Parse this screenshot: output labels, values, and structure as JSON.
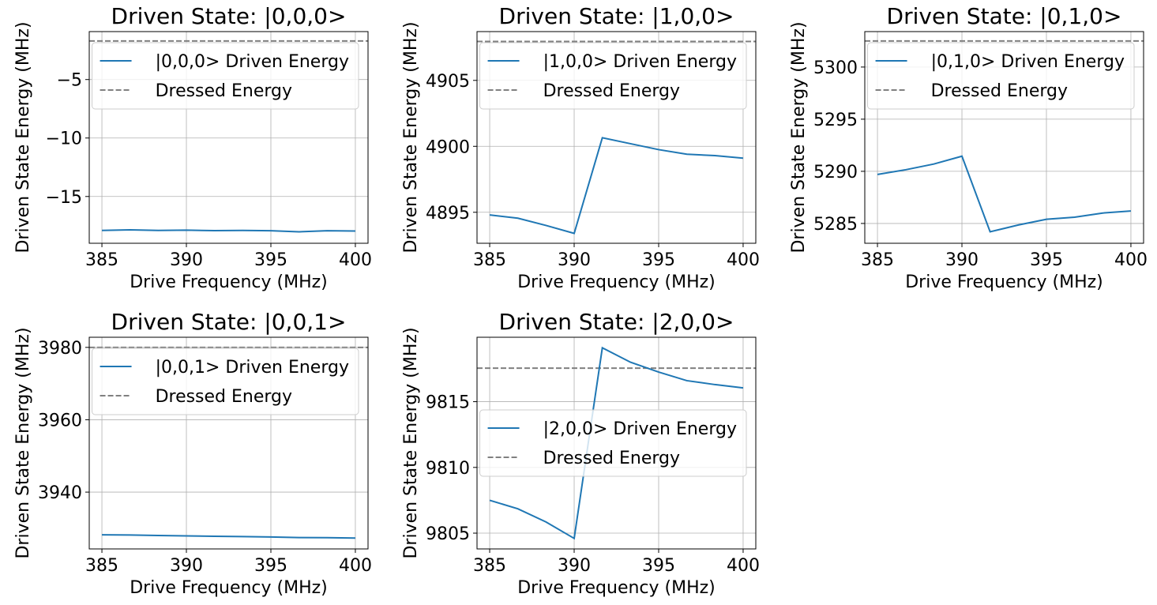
{
  "chart_data": [
    {
      "type": "line",
      "title": "Driven State: |0,0,0>",
      "xlabel": "Drive Frequency (MHz)",
      "ylabel": "Driven State Energy (MHz)",
      "x": [
        385,
        386.667,
        388.333,
        390,
        391.667,
        393.333,
        395,
        396.667,
        398.333,
        400
      ],
      "series": [
        {
          "name": "|0,0,0> Driven Energy",
          "color": "#1f77b4",
          "values": [
            -17.9,
            -17.85,
            -17.9,
            -17.88,
            -17.92,
            -17.9,
            -17.93,
            -18.02,
            -17.93,
            -17.95
          ]
        }
      ],
      "hlines": [
        {
          "name": "Dressed Energy",
          "color": "#808080",
          "value": -1.7
        }
      ],
      "xlim": [
        384.25,
        400.75
      ],
      "ylim": [
        -19,
        -0.9
      ],
      "xticks": [
        385,
        390,
        395,
        400
      ],
      "yticks": [
        {
          "value": -15,
          "label": "−15"
        },
        {
          "value": -10,
          "label": "−10"
        },
        {
          "value": -5,
          "label": "−5"
        }
      ],
      "grid": true,
      "legend": "upper right"
    },
    {
      "type": "line",
      "title": "Driven State: |1,0,0>",
      "xlabel": "Drive Frequency (MHz)",
      "ylabel": "Driven State Energy (MHz)",
      "x": [
        385,
        386.667,
        388.333,
        390,
        391.667,
        393.333,
        395,
        396.667,
        398.333,
        400
      ],
      "series": [
        {
          "name": "|1,0,0> Driven Energy",
          "color": "#1f77b4",
          "values": [
            4894.8,
            4894.55,
            4894.0,
            4893.4,
            4900.65,
            4900.2,
            4899.75,
            4899.4,
            4899.3,
            4899.1
          ]
        }
      ],
      "hlines": [
        {
          "name": "Dressed Energy",
          "color": "#808080",
          "value": 4907.95
        }
      ],
      "xlim": [
        384.25,
        400.75
      ],
      "ylim": [
        4892.65,
        4908.7
      ],
      "xticks": [
        385,
        390,
        395,
        400
      ],
      "yticks": [
        4895,
        4900,
        4905
      ],
      "grid": true,
      "legend": "upper right"
    },
    {
      "type": "line",
      "title": "Driven State: |0,1,0>",
      "xlabel": "Drive Frequency (MHz)",
      "ylabel": "Driven State Energy (MHz)",
      "x": [
        385,
        386.667,
        388.333,
        390,
        391.667,
        393.333,
        395,
        396.667,
        398.333,
        400
      ],
      "series": [
        {
          "name": "|0,1,0> Driven Energy",
          "color": "#1f77b4",
          "values": [
            5289.7,
            5290.15,
            5290.7,
            5291.45,
            5284.2,
            5284.85,
            5285.4,
            5285.6,
            5286.0,
            5286.2
          ]
        }
      ],
      "hlines": [
        {
          "name": "Dressed Energy",
          "color": "#808080",
          "value": 5302.5
        }
      ],
      "xlim": [
        384.25,
        400.75
      ],
      "ylim": [
        5283.1,
        5303.4
      ],
      "xticks": [
        385,
        390,
        395,
        400
      ],
      "yticks": [
        5285,
        5290,
        5295,
        5300
      ],
      "grid": true,
      "legend": "upper right"
    },
    {
      "type": "line",
      "title": "Driven State: |0,0,1>",
      "xlabel": "Drive Frequency (MHz)",
      "ylabel": "Driven State Energy (MHz)",
      "x": [
        385,
        386.667,
        388.333,
        390,
        391.667,
        393.333,
        395,
        396.667,
        398.333,
        400
      ],
      "series": [
        {
          "name": "|0,0,1> Driven Energy",
          "color": "#1f77b4",
          "values": [
            3928.2,
            3928.15,
            3928.0,
            3927.9,
            3927.8,
            3927.7,
            3927.6,
            3927.45,
            3927.4,
            3927.3
          ]
        }
      ],
      "hlines": [
        {
          "name": "Dressed Energy",
          "color": "#808080",
          "value": 3980.0
        }
      ],
      "xlim": [
        384.25,
        400.75
      ],
      "ylim": [
        3924.3,
        3982.8
      ],
      "xticks": [
        385,
        390,
        395,
        400
      ],
      "yticks": [
        3940,
        3960,
        3980
      ],
      "grid": true,
      "legend": "upper right"
    },
    {
      "type": "line",
      "title": "Driven State: |2,0,0>",
      "xlabel": "Drive Frequency (MHz)",
      "ylabel": "Driven State Energy (MHz)",
      "x": [
        385,
        386.667,
        388.333,
        390,
        391.667,
        393.333,
        395,
        396.667,
        398.333,
        400
      ],
      "series": [
        {
          "name": "|2,0,0> Driven Energy",
          "color": "#1f77b4",
          "values": [
            9807.5,
            9806.85,
            9805.85,
            9804.6,
            9819.1,
            9818.0,
            9817.25,
            9816.6,
            9816.3,
            9816.05
          ]
        }
      ],
      "hlines": [
        {
          "name": "Dressed Energy",
          "color": "#808080",
          "value": 9817.55
        }
      ],
      "xlim": [
        384.25,
        400.75
      ],
      "ylim": [
        9803.8,
        9819.9
      ],
      "xticks": [
        385,
        390,
        395,
        400
      ],
      "yticks": [
        9805,
        9810,
        9815
      ],
      "grid": true,
      "legend": "center right"
    }
  ]
}
